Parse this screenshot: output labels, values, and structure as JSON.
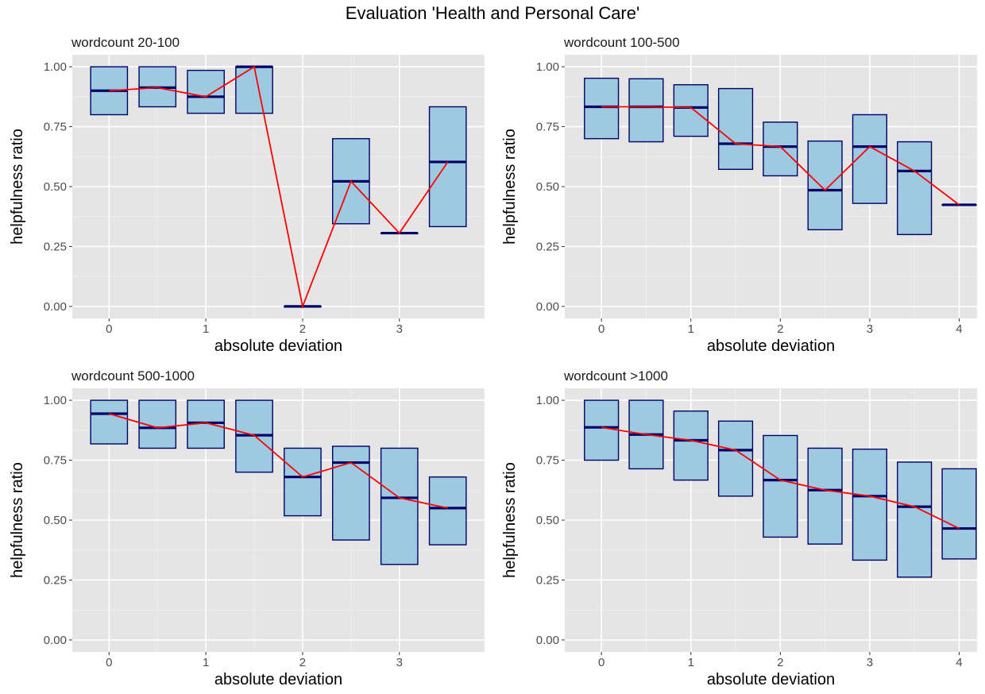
{
  "title": "Evaluation 'Health and Personal Care'",
  "colors": {
    "panel_bg": "#e5e5e5",
    "grid_major": "#ffffff",
    "box_fill": "#9ecae1",
    "box_border": "#000066",
    "median": "#000066",
    "mean_line": "#ff0000",
    "tick_text": "#4d4d4d",
    "axis_title": "#000000"
  },
  "chart_data": [
    {
      "type": "boxplot",
      "title": "wordcount 20-100",
      "xlabel": "absolute deviation",
      "ylabel": "helpfulness ratio",
      "xlim": [
        -0.38,
        3.88
      ],
      "ylim": [
        -0.05,
        1.05
      ],
      "xticks": [
        0,
        1,
        2,
        3
      ],
      "yticks": [
        0.0,
        0.25,
        0.5,
        0.75,
        1.0
      ],
      "ytick_labels": [
        "0.00",
        "0.25",
        "0.50",
        "0.75",
        "1.00"
      ],
      "grid": true,
      "boxes": [
        {
          "x": 0,
          "lower": 0.8,
          "median": 0.9,
          "upper": 1.0
        },
        {
          "x": 0.5,
          "lower": 0.833,
          "median": 0.913,
          "upper": 1.0
        },
        {
          "x": 1,
          "lower": 0.806,
          "median": 0.875,
          "upper": 0.985
        },
        {
          "x": 1.5,
          "lower": 0.806,
          "median": 1.0,
          "upper": 1.0
        },
        {
          "x": 2,
          "lower": 0.0,
          "median": 0.0,
          "upper": 0.0
        },
        {
          "x": 2.5,
          "lower": 0.345,
          "median": 0.522,
          "upper": 0.7
        },
        {
          "x": 3,
          "lower": 0.306,
          "median": 0.306,
          "upper": 0.306
        },
        {
          "x": 3.5,
          "lower": 0.333,
          "median": 0.603,
          "upper": 0.833
        }
      ]
    },
    {
      "type": "boxplot",
      "title": "wordcount 100-500",
      "xlabel": "absolute deviation",
      "ylabel": "helpfulness ratio",
      "xlim": [
        -0.41,
        4.2
      ],
      "ylim": [
        -0.05,
        1.05
      ],
      "xticks": [
        0,
        1,
        2,
        3,
        4
      ],
      "yticks": [
        0.0,
        0.25,
        0.5,
        0.75,
        1.0
      ],
      "ytick_labels": [
        "0.00",
        "0.25",
        "0.50",
        "0.75",
        "1.00"
      ],
      "grid": true,
      "boxes": [
        {
          "x": 0,
          "lower": 0.7,
          "median": 0.833,
          "upper": 0.952
        },
        {
          "x": 0.5,
          "lower": 0.687,
          "median": 0.833,
          "upper": 0.95
        },
        {
          "x": 1,
          "lower": 0.71,
          "median": 0.83,
          "upper": 0.925
        },
        {
          "x": 1.5,
          "lower": 0.572,
          "median": 0.679,
          "upper": 0.909
        },
        {
          "x": 2,
          "lower": 0.545,
          "median": 0.667,
          "upper": 0.769
        },
        {
          "x": 2.5,
          "lower": 0.32,
          "median": 0.485,
          "upper": 0.69
        },
        {
          "x": 3,
          "lower": 0.43,
          "median": 0.667,
          "upper": 0.8
        },
        {
          "x": 3.5,
          "lower": 0.3,
          "median": 0.565,
          "upper": 0.687
        },
        {
          "x": 4,
          "lower": 0.424,
          "median": 0.424,
          "upper": 0.424
        }
      ]
    },
    {
      "type": "boxplot",
      "title": "wordcount 500-1000",
      "xlabel": "absolute deviation",
      "ylabel": "helpfulness ratio",
      "xlim": [
        -0.38,
        3.88
      ],
      "ylim": [
        -0.05,
        1.05
      ],
      "xticks": [
        0,
        1,
        2,
        3
      ],
      "yticks": [
        0.0,
        0.25,
        0.5,
        0.75,
        1.0
      ],
      "ytick_labels": [
        "0.00",
        "0.25",
        "0.50",
        "0.75",
        "1.00"
      ],
      "grid": true,
      "boxes": [
        {
          "x": 0,
          "lower": 0.818,
          "median": 0.944,
          "upper": 1.0
        },
        {
          "x": 0.5,
          "lower": 0.8,
          "median": 0.885,
          "upper": 1.0
        },
        {
          "x": 1,
          "lower": 0.8,
          "median": 0.906,
          "upper": 1.0
        },
        {
          "x": 1.5,
          "lower": 0.7,
          "median": 0.854,
          "upper": 1.0
        },
        {
          "x": 2,
          "lower": 0.518,
          "median": 0.68,
          "upper": 0.8
        },
        {
          "x": 2.5,
          "lower": 0.417,
          "median": 0.74,
          "upper": 0.808
        },
        {
          "x": 3,
          "lower": 0.315,
          "median": 0.593,
          "upper": 0.8
        },
        {
          "x": 3.5,
          "lower": 0.397,
          "median": 0.55,
          "upper": 0.68
        }
      ]
    },
    {
      "type": "boxplot",
      "title": "wordcount >1000",
      "xlabel": "absolute deviation",
      "ylabel": "helpfulness ratio",
      "xlim": [
        -0.41,
        4.2
      ],
      "ylim": [
        -0.05,
        1.05
      ],
      "xticks": [
        0,
        1,
        2,
        3,
        4
      ],
      "yticks": [
        0.0,
        0.25,
        0.5,
        0.75,
        1.0
      ],
      "ytick_labels": [
        "0.00",
        "0.25",
        "0.50",
        "0.75",
        "1.00"
      ],
      "grid": true,
      "boxes": [
        {
          "x": 0,
          "lower": 0.75,
          "median": 0.887,
          "upper": 1.0
        },
        {
          "x": 0.5,
          "lower": 0.714,
          "median": 0.857,
          "upper": 1.0
        },
        {
          "x": 1,
          "lower": 0.667,
          "median": 0.833,
          "upper": 0.955
        },
        {
          "x": 1.5,
          "lower": 0.6,
          "median": 0.792,
          "upper": 0.913
        },
        {
          "x": 2,
          "lower": 0.429,
          "median": 0.667,
          "upper": 0.853
        },
        {
          "x": 2.5,
          "lower": 0.4,
          "median": 0.625,
          "upper": 0.8
        },
        {
          "x": 3,
          "lower": 0.333,
          "median": 0.6,
          "upper": 0.796
        },
        {
          "x": 3.5,
          "lower": 0.262,
          "median": 0.556,
          "upper": 0.742
        },
        {
          "x": 4,
          "lower": 0.338,
          "median": 0.465,
          "upper": 0.714
        }
      ]
    }
  ]
}
